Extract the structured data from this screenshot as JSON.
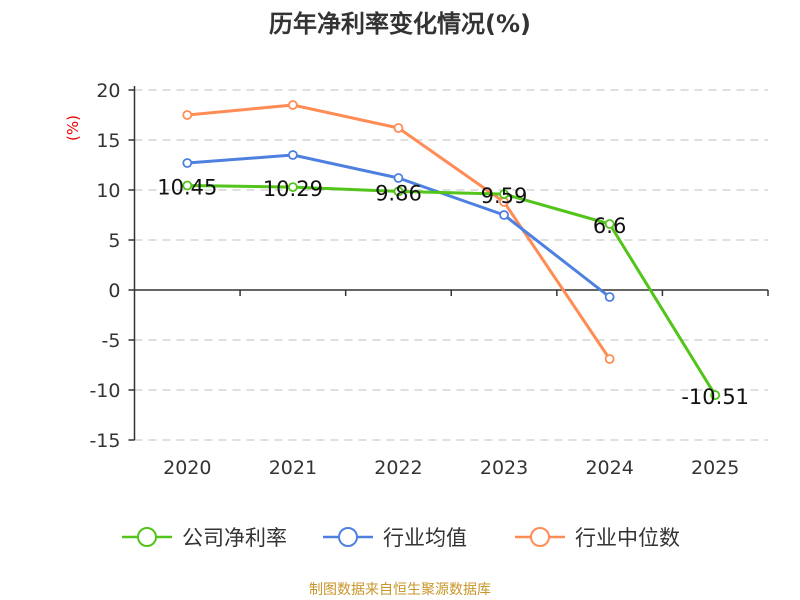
{
  "chart_data": {
    "type": "line",
    "title": "历年净利率变化情况(%)",
    "ylabel": "(%)",
    "xlabel": "",
    "categories": [
      "2020",
      "2021",
      "2022",
      "2023",
      "2024",
      "2025"
    ],
    "ylim": [
      -15,
      20
    ],
    "yticks": [
      "20",
      "15",
      "10",
      "5",
      "0",
      "-5",
      "-10",
      "-15"
    ],
    "grid": true,
    "legend_position": "bottom",
    "series": [
      {
        "name": "公司净利率",
        "color": "#52c41a",
        "values": [
          10.45,
          10.29,
          9.86,
          9.59,
          6.6,
          -10.51
        ],
        "labels": [
          "10.45",
          "10.29",
          "9.86",
          "9.59",
          "6.6",
          "-10.51"
        ]
      },
      {
        "name": "行业均值",
        "color": "#4e80e0",
        "values": [
          12.7,
          13.5,
          11.2,
          7.5,
          -0.7,
          null
        ]
      },
      {
        "name": "行业中位数",
        "color": "#ff8c55",
        "values": [
          17.5,
          18.5,
          16.2,
          8.8,
          -6.9,
          null
        ]
      }
    ]
  },
  "footer": {
    "source": "制图数据来自恒生聚源数据库"
  }
}
